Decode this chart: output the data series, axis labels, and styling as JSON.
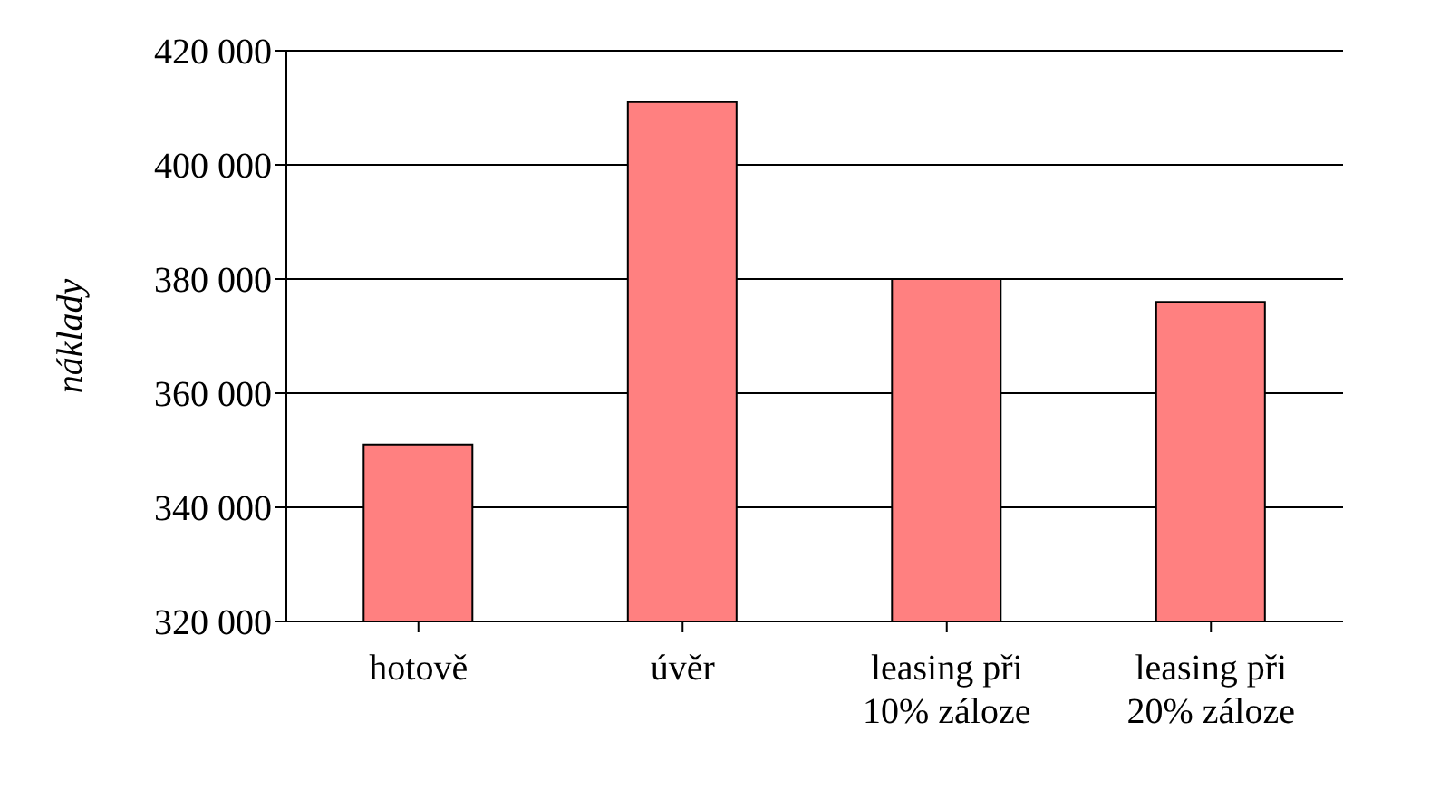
{
  "chart_data": {
    "type": "bar",
    "ylabel": "náklady",
    "categories": [
      "hotově",
      "úvěr",
      "leasing při 10% záloze",
      "leasing při 20% záloze"
    ],
    "values": [
      351000,
      411000,
      380000,
      376000
    ],
    "color": "#ff8080",
    "ylim": [
      320000,
      420000
    ],
    "yticks": [
      {
        "value": 320000,
        "label": "320 000"
      },
      {
        "value": 340000,
        "label": "340 000"
      },
      {
        "value": 360000,
        "label": "360 000"
      },
      {
        "value": 380000,
        "label": "380 000"
      },
      {
        "value": 400000,
        "label": "400 000"
      },
      {
        "value": 420000,
        "label": "420 000"
      }
    ],
    "grid": "y",
    "legend": false
  }
}
